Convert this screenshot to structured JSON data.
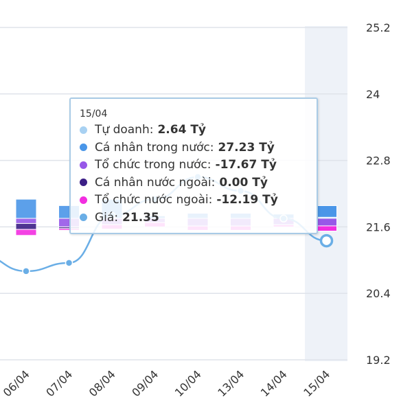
{
  "chart_data": {
    "type": "bar",
    "categories": [
      "06/04",
      "07/04",
      "08/04",
      "09/04",
      "10/04",
      "13/04",
      "14/04",
      "15/04"
    ],
    "y_axis": {
      "ticks": [
        "19.2",
        "20.4",
        "21.6",
        "22.8",
        "24",
        "25.2"
      ],
      "range": [
        19.2,
        25.2
      ],
      "position": "right",
      "grid": true
    },
    "price_series": {
      "name": "Giá",
      "color": "#6aaee6",
      "x": [
        "06/04",
        "07/04",
        "08/04",
        "09/04",
        "10/04",
        "13/04",
        "14/04",
        "15/04"
      ],
      "values": [
        20.8,
        20.95,
        21.8,
        22.1,
        22.5,
        22.25,
        21.75,
        21.35
      ]
    },
    "bar_series": [
      {
        "name": "Tự doanh",
        "color": "#a8d1f2",
        "values": [
          0,
          0,
          0,
          0,
          0,
          0,
          0,
          2.64
        ]
      },
      {
        "name": "Cá nhân trong nước",
        "color": "#4a96e8",
        "values": [
          45,
          30,
          45,
          6,
          12,
          12,
          10,
          27.23
        ]
      },
      {
        "name": "Tổ chức trong nước",
        "color": "#9758e8",
        "values": [
          -12,
          -20,
          -15,
          -10,
          -18,
          -18,
          -15,
          -17.67
        ]
      },
      {
        "name": "Cá nhân nước ngoài",
        "color": "#3c1f86",
        "values": [
          -14,
          -4,
          0,
          0,
          0,
          0,
          0,
          0
        ]
      },
      {
        "name": "Tổ chức nước ngoài",
        "color": "#f22ee0",
        "values": [
          -14,
          -4,
          -10,
          -10,
          -10,
          -10,
          -5,
          -12.19
        ]
      }
    ],
    "highlight_category": "15/04",
    "tooltip": {
      "date": "15/04",
      "rows": [
        {
          "label": "Tự doanh:",
          "value": "2.64 Tỷ",
          "color": "#a8d1f2"
        },
        {
          "label": "Cá nhân trong nước:",
          "value": "27.23 Tỷ",
          "color": "#4a96e8"
        },
        {
          "label": "Tổ chức trong nước:",
          "value": "-17.67 Tỷ",
          "color": "#9758e8"
        },
        {
          "label": "Cá nhân nước ngoài:",
          "value": "0.00 Tỷ",
          "color": "#3c1f86"
        },
        {
          "label": "Tổ chức nước ngoài:",
          "value": "-12.19 Tỷ",
          "color": "#f22ee0"
        },
        {
          "label": "Giá:",
          "value": "21.35",
          "color": "#6aaee6"
        }
      ]
    }
  }
}
